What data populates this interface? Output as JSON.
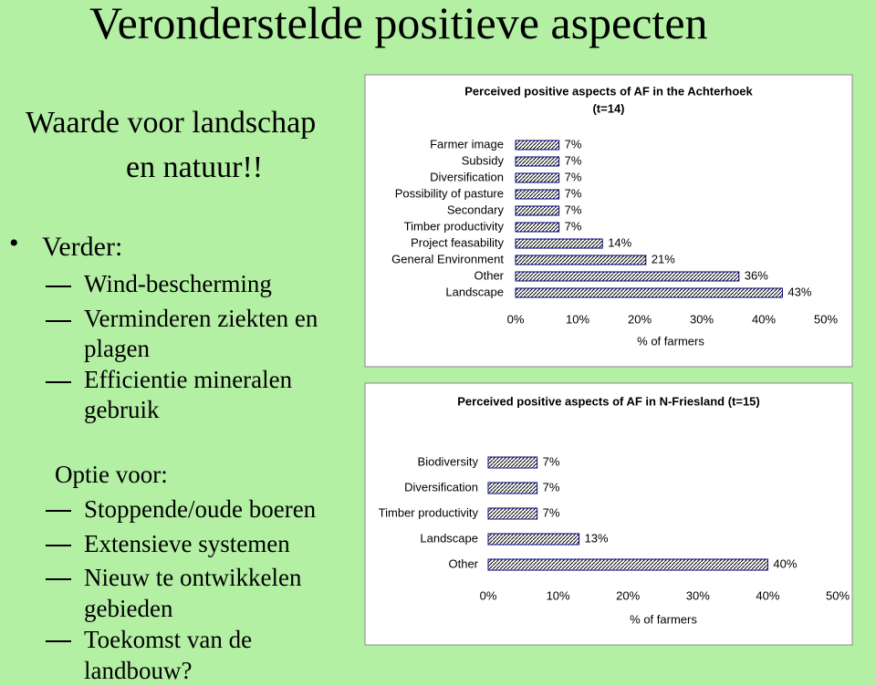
{
  "slide": {
    "title": "Veronderstelde positieve aspecten",
    "intro": [
      "Waarde voor landschap",
      "en natuur!!"
    ],
    "bullet": "Verder:",
    "sub_items": [
      "Wind-bescherming",
      "Verminderen ziekten en plagen",
      "Efficientie mineralen gebruik"
    ],
    "option": "Optie voor:",
    "option_items": [
      "Stoppende/oude boeren",
      "Extensieve systemen",
      "Nieuw te ontwikkelen gebieden",
      "Toekomst van de landbouw?"
    ]
  },
  "chart_data": [
    {
      "type": "bar",
      "orientation": "horizontal",
      "title": "Perceived positive aspects of AF in the Achterhoek",
      "subtitle": "(t=14)",
      "categories": [
        "Farmer image",
        "Subsidy",
        "Diversification",
        "Possibility of pasture",
        "Secondary",
        "Timber productivity",
        "Project feasability",
        "General Environment",
        "Other",
        "Landscape"
      ],
      "values": [
        7,
        7,
        7,
        7,
        7,
        7,
        14,
        21,
        36,
        43
      ],
      "value_labels": [
        "7%",
        "7%",
        "7%",
        "7%",
        "7%",
        "7%",
        "14%",
        "21%",
        "36%",
        "43%"
      ],
      "color": "#000080",
      "xlim": [
        0,
        50
      ],
      "xticks": [
        {
          "value": 0,
          "label": "0%"
        },
        {
          "value": 10,
          "label": "10%"
        },
        {
          "value": 20,
          "label": "20%"
        },
        {
          "value": 30,
          "label": "30%"
        },
        {
          "value": 40,
          "label": "40%"
        },
        {
          "value": 50,
          "label": "50%"
        }
      ],
      "xlabel": "% of farmers"
    },
    {
      "type": "bar",
      "orientation": "horizontal",
      "title": "Perceived positive aspects of AF in N-Friesland (t=15)",
      "categories": [
        "Biodiversity",
        "Diversification",
        "Timber productivity",
        "Landscape",
        "Other"
      ],
      "values": [
        7,
        7,
        7,
        13,
        40
      ],
      "value_labels": [
        "7%",
        "7%",
        "7%",
        "13%",
        "40%"
      ],
      "color": "#000080",
      "xlim": [
        0,
        50
      ],
      "xticks": [
        {
          "value": 0,
          "label": "0%"
        },
        {
          "value": 10,
          "label": "10%"
        },
        {
          "value": 20,
          "label": "20%"
        },
        {
          "value": 30,
          "label": "30%"
        },
        {
          "value": 40,
          "label": "40%"
        },
        {
          "value": 50,
          "label": "50%"
        }
      ],
      "xlabel": "% of farmers"
    }
  ]
}
